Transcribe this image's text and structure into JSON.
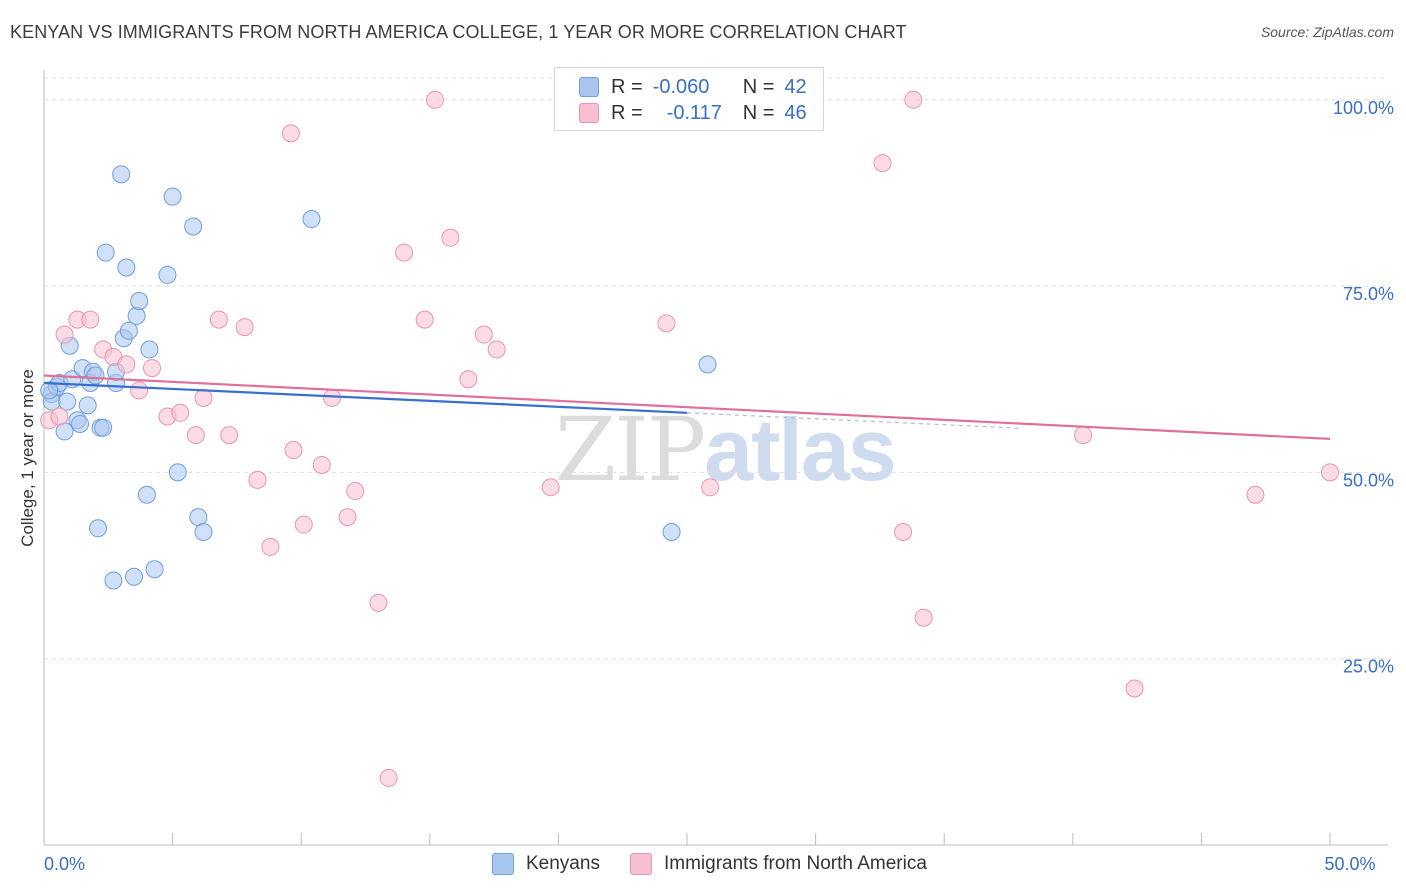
{
  "title": "KENYAN VS IMMIGRANTS FROM NORTH AMERICA COLLEGE, 1 YEAR OR MORE CORRELATION CHART",
  "source": "Source: ZipAtlas.com",
  "watermark": {
    "zip": "ZIP",
    "atlas": "atlas"
  },
  "legend": {
    "r_label": "R =",
    "n_label": "N =",
    "series": [
      {
        "r": "-0.060",
        "n": "42"
      },
      {
        "r": "-0.117",
        "n": "46"
      }
    ]
  },
  "bottom_legend": [
    "Kenyans",
    "Immigrants from North America"
  ],
  "chart_data": {
    "type": "scatter",
    "ylabel": "College, 1 year or more",
    "xlim": [
      0,
      50
    ],
    "ylim": [
      0,
      104
    ],
    "x_tick_labels": [
      {
        "value": 0,
        "label": "0.0%"
      },
      {
        "value": 50,
        "label": "50.0%"
      }
    ],
    "y_tick_labels": [
      {
        "value": 25,
        "label": "25.0%"
      },
      {
        "value": 50,
        "label": "50.0%"
      },
      {
        "value": 75,
        "label": "75.0%"
      },
      {
        "value": 100,
        "label": "100.0%"
      }
    ],
    "grid": true,
    "colors": {
      "blue_fill": "#a9c6ee",
      "blue_stroke": "#6f9fdc",
      "blue_line": "#3a6fd0",
      "pink_fill": "#f7bfd0",
      "pink_stroke": "#e994b2",
      "pink_line": "#e0709a",
      "axis_text": "#3a6fc4"
    },
    "series": [
      {
        "name": "Kenyans",
        "color": "blue",
        "points": [
          [
            0.3,
            60.5
          ],
          [
            0.3,
            59.5
          ],
          [
            0.5,
            61.5
          ],
          [
            0.6,
            62
          ],
          [
            0.8,
            55.5
          ],
          [
            0.9,
            59.5
          ],
          [
            1.0,
            67
          ],
          [
            1.1,
            62.5
          ],
          [
            1.3,
            57
          ],
          [
            1.4,
            56.5
          ],
          [
            1.5,
            64
          ],
          [
            1.7,
            59
          ],
          [
            1.8,
            62
          ],
          [
            1.9,
            63.5
          ],
          [
            2.0,
            63
          ],
          [
            2.1,
            42.5
          ],
          [
            2.2,
            56
          ],
          [
            2.3,
            56
          ],
          [
            2.4,
            79.5
          ],
          [
            2.7,
            35.5
          ],
          [
            2.8,
            62
          ],
          [
            2.8,
            63.5
          ],
          [
            3.0,
            90
          ],
          [
            3.1,
            68
          ],
          [
            3.2,
            77.5
          ],
          [
            3.3,
            69
          ],
          [
            3.5,
            36
          ],
          [
            3.6,
            71
          ],
          [
            3.7,
            73
          ],
          [
            4.0,
            47
          ],
          [
            4.1,
            66.5
          ],
          [
            4.3,
            37
          ],
          [
            4.8,
            76.5
          ],
          [
            5.0,
            87
          ],
          [
            5.2,
            50
          ],
          [
            5.8,
            83
          ],
          [
            6.0,
            44
          ],
          [
            6.2,
            42
          ],
          [
            10.4,
            84
          ],
          [
            24.4,
            42
          ],
          [
            25.8,
            64.5
          ],
          [
            0.2,
            61
          ]
        ],
        "trend": {
          "x": [
            0,
            25
          ],
          "y": [
            62,
            58
          ]
        }
      },
      {
        "name": "Immigrants from North America",
        "color": "pink",
        "points": [
          [
            0.2,
            57
          ],
          [
            0.8,
            68.5
          ],
          [
            1.3,
            70.5
          ],
          [
            1.8,
            70.5
          ],
          [
            2.3,
            66.5
          ],
          [
            2.7,
            65.5
          ],
          [
            3.2,
            64.5
          ],
          [
            3.7,
            61
          ],
          [
            4.2,
            64
          ],
          [
            4.8,
            57.5
          ],
          [
            5.3,
            58
          ],
          [
            5.9,
            55
          ],
          [
            6.2,
            60
          ],
          [
            6.8,
            70.5
          ],
          [
            7.2,
            55
          ],
          [
            7.8,
            69.5
          ],
          [
            8.3,
            49
          ],
          [
            8.8,
            40
          ],
          [
            9.6,
            95.5
          ],
          [
            9.7,
            53
          ],
          [
            10.1,
            43
          ],
          [
            10.8,
            51
          ],
          [
            11.2,
            60
          ],
          [
            11.8,
            44
          ],
          [
            12.1,
            47.5
          ],
          [
            13.0,
            32.5
          ],
          [
            13.4,
            9
          ],
          [
            14.0,
            79.5
          ],
          [
            14.8,
            70.5
          ],
          [
            15.2,
            100
          ],
          [
            15.8,
            81.5
          ],
          [
            16.5,
            62.5
          ],
          [
            17.1,
            68.5
          ],
          [
            17.6,
            66.5
          ],
          [
            19.7,
            48
          ],
          [
            24.2,
            70
          ],
          [
            25.9,
            48
          ],
          [
            32.6,
            91.5
          ],
          [
            33.4,
            42
          ],
          [
            34.2,
            30.5
          ],
          [
            33.8,
            100
          ],
          [
            40.4,
            55
          ],
          [
            42.4,
            21
          ],
          [
            47.1,
            47
          ],
          [
            50.0,
            50
          ],
          [
            0.6,
            57.5
          ]
        ],
        "trend": {
          "x": [
            0,
            50
          ],
          "y": [
            63,
            54.5
          ]
        }
      }
    ]
  }
}
